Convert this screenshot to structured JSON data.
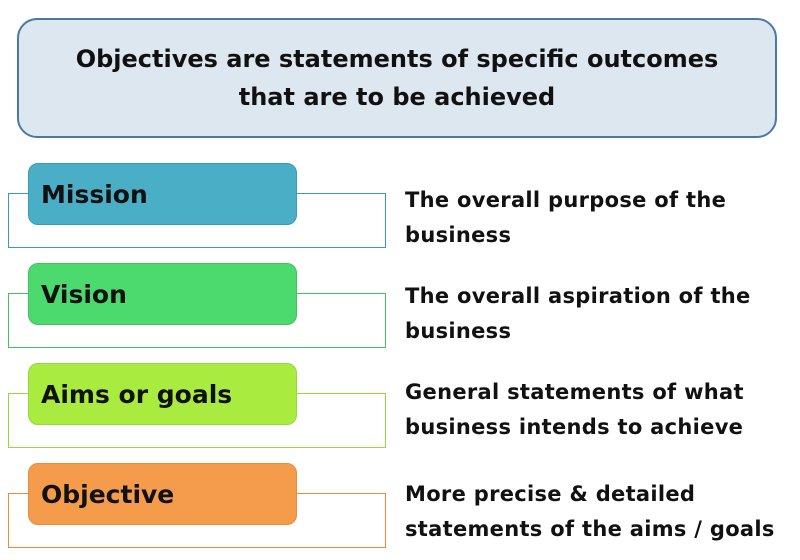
{
  "header": {
    "text": "Objectives are statements of specific outcomes that are to be achieved"
  },
  "rows": [
    {
      "label": "Mission",
      "description": "The overall purpose of the business",
      "fill_color": "#4aaec6",
      "border_color": "#3a9bb5"
    },
    {
      "label": "Vision",
      "description": "The overall aspiration of the business",
      "fill_color": "#4cd96e",
      "border_color": "#44c065"
    },
    {
      "label": "Aims or goals",
      "description": "General statements of what business intends to achieve",
      "fill_color": "#a9ec3f",
      "border_color": "#9ad53c"
    },
    {
      "label": "Objective",
      "description": "More precise & detailed statements of the aims / goals",
      "fill_color": "#f59b4c",
      "border_color": "#e88d3d"
    }
  ]
}
